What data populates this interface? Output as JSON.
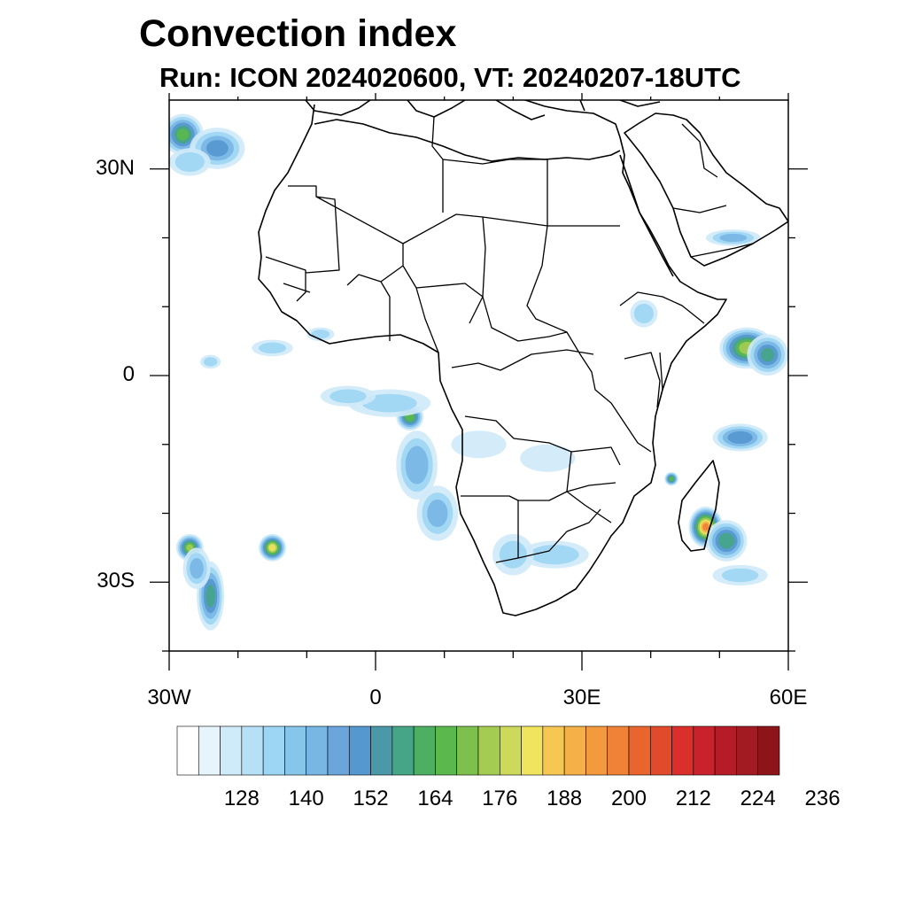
{
  "title": "Convection index",
  "subtitle": "Run: ICON 2024020600,  VT: 20240207-18UTC",
  "map": {
    "region": "Africa",
    "lon_range": [
      -30,
      60
    ],
    "lat_range": [
      -40,
      40
    ],
    "x_ticks": [
      {
        "lon": -30,
        "label": "30W"
      },
      {
        "lon": 0,
        "label": "0"
      },
      {
        "lon": 30,
        "label": "30E"
      },
      {
        "lon": 60,
        "label": "60E"
      }
    ],
    "y_ticks": [
      {
        "lat": 30,
        "label": "30N"
      },
      {
        "lat": 0,
        "label": "0"
      },
      {
        "lat": -30,
        "label": "30S"
      }
    ],
    "minor_lon_ticks": [
      -20,
      -10,
      10,
      20,
      40,
      50
    ],
    "minor_lat_ticks": [
      20,
      10,
      -10,
      -20,
      -40
    ]
  },
  "colorbar": {
    "colors": [
      "#ffffff",
      "#e6f4fc",
      "#cfeaf8",
      "#b6e0f6",
      "#9dd6f4",
      "#86c6ea",
      "#78b6e4",
      "#6aa6dc",
      "#5597cf",
      "#4a98a8",
      "#45a586",
      "#4caf62",
      "#5ab84c",
      "#7dc04d",
      "#a5cc52",
      "#cdd95a",
      "#f0e45e",
      "#f6c853",
      "#f6b048",
      "#f39a3e",
      "#ef8236",
      "#e8662e",
      "#e24a2c",
      "#da2f2a",
      "#c9222c",
      "#b51c27",
      "#a21a22",
      "#8d1419"
    ],
    "labels": [
      "128",
      "140",
      "152",
      "164",
      "176",
      "188",
      "200",
      "212",
      "224",
      "236"
    ]
  },
  "convection_blobs": [
    {
      "lon": -28,
      "lat": 35,
      "rx": 3,
      "ry": 3,
      "level": 12
    },
    {
      "lon": -23,
      "lat": 33,
      "rx": 4,
      "ry": 3,
      "level": 8
    },
    {
      "lon": -27,
      "lat": 31,
      "rx": 3,
      "ry": 2,
      "level": 5
    },
    {
      "lon": 5,
      "lat": -6,
      "rx": 2,
      "ry": 2,
      "level": 13
    },
    {
      "lon": 6,
      "lat": -13,
      "rx": 3,
      "ry": 5,
      "level": 7
    },
    {
      "lon": 9,
      "lat": -20,
      "rx": 3,
      "ry": 4,
      "level": 6
    },
    {
      "lon": 2,
      "lat": -4,
      "rx": 6,
      "ry": 2,
      "level": 4
    },
    {
      "lon": -4,
      "lat": -3,
      "rx": 4,
      "ry": 1.5,
      "level": 4
    },
    {
      "lon": 15,
      "lat": -10,
      "rx": 4,
      "ry": 2,
      "level": 3
    },
    {
      "lon": 25,
      "lat": -12,
      "rx": 4,
      "ry": 2,
      "level": 3
    },
    {
      "lon": 26,
      "lat": -26,
      "rx": 5,
      "ry": 2,
      "level": 5
    },
    {
      "lon": 20,
      "lat": -26,
      "rx": 3,
      "ry": 3,
      "level": 4
    },
    {
      "lon": 54,
      "lat": 4,
      "rx": 4,
      "ry": 3,
      "level": 15
    },
    {
      "lon": 57,
      "lat": 3,
      "rx": 3,
      "ry": 3,
      "level": 10
    },
    {
      "lon": 53,
      "lat": -9,
      "rx": 4,
      "ry": 2,
      "level": 9
    },
    {
      "lon": 48,
      "lat": -22,
      "rx": 2.5,
      "ry": 3,
      "level": 20
    },
    {
      "lon": 51,
      "lat": -24,
      "rx": 3,
      "ry": 3,
      "level": 11
    },
    {
      "lon": 53,
      "lat": -29,
      "rx": 4,
      "ry": 1.5,
      "level": 4
    },
    {
      "lon": 43,
      "lat": -15,
      "rx": 1,
      "ry": 1,
      "level": 13
    },
    {
      "lon": 52,
      "lat": 20,
      "rx": 4,
      "ry": 1.2,
      "level": 6
    },
    {
      "lon": 39,
      "lat": 9,
      "rx": 2,
      "ry": 2,
      "level": 5
    },
    {
      "lon": -15,
      "lat": -25,
      "rx": 2,
      "ry": 2,
      "level": 17
    },
    {
      "lon": -27,
      "lat": -25,
      "rx": 2,
      "ry": 2,
      "level": 14
    },
    {
      "lon": -24,
      "lat": -32,
      "rx": 2,
      "ry": 5,
      "level": 10
    },
    {
      "lon": -26,
      "lat": -28,
      "rx": 2,
      "ry": 3,
      "level": 6
    },
    {
      "lon": -15,
      "lat": 4,
      "rx": 3,
      "ry": 1.2,
      "level": 4
    },
    {
      "lon": -8,
      "lat": 6,
      "rx": 2,
      "ry": 1,
      "level": 4
    },
    {
      "lon": -24,
      "lat": 2,
      "rx": 1.5,
      "ry": 1,
      "level": 4
    }
  ]
}
